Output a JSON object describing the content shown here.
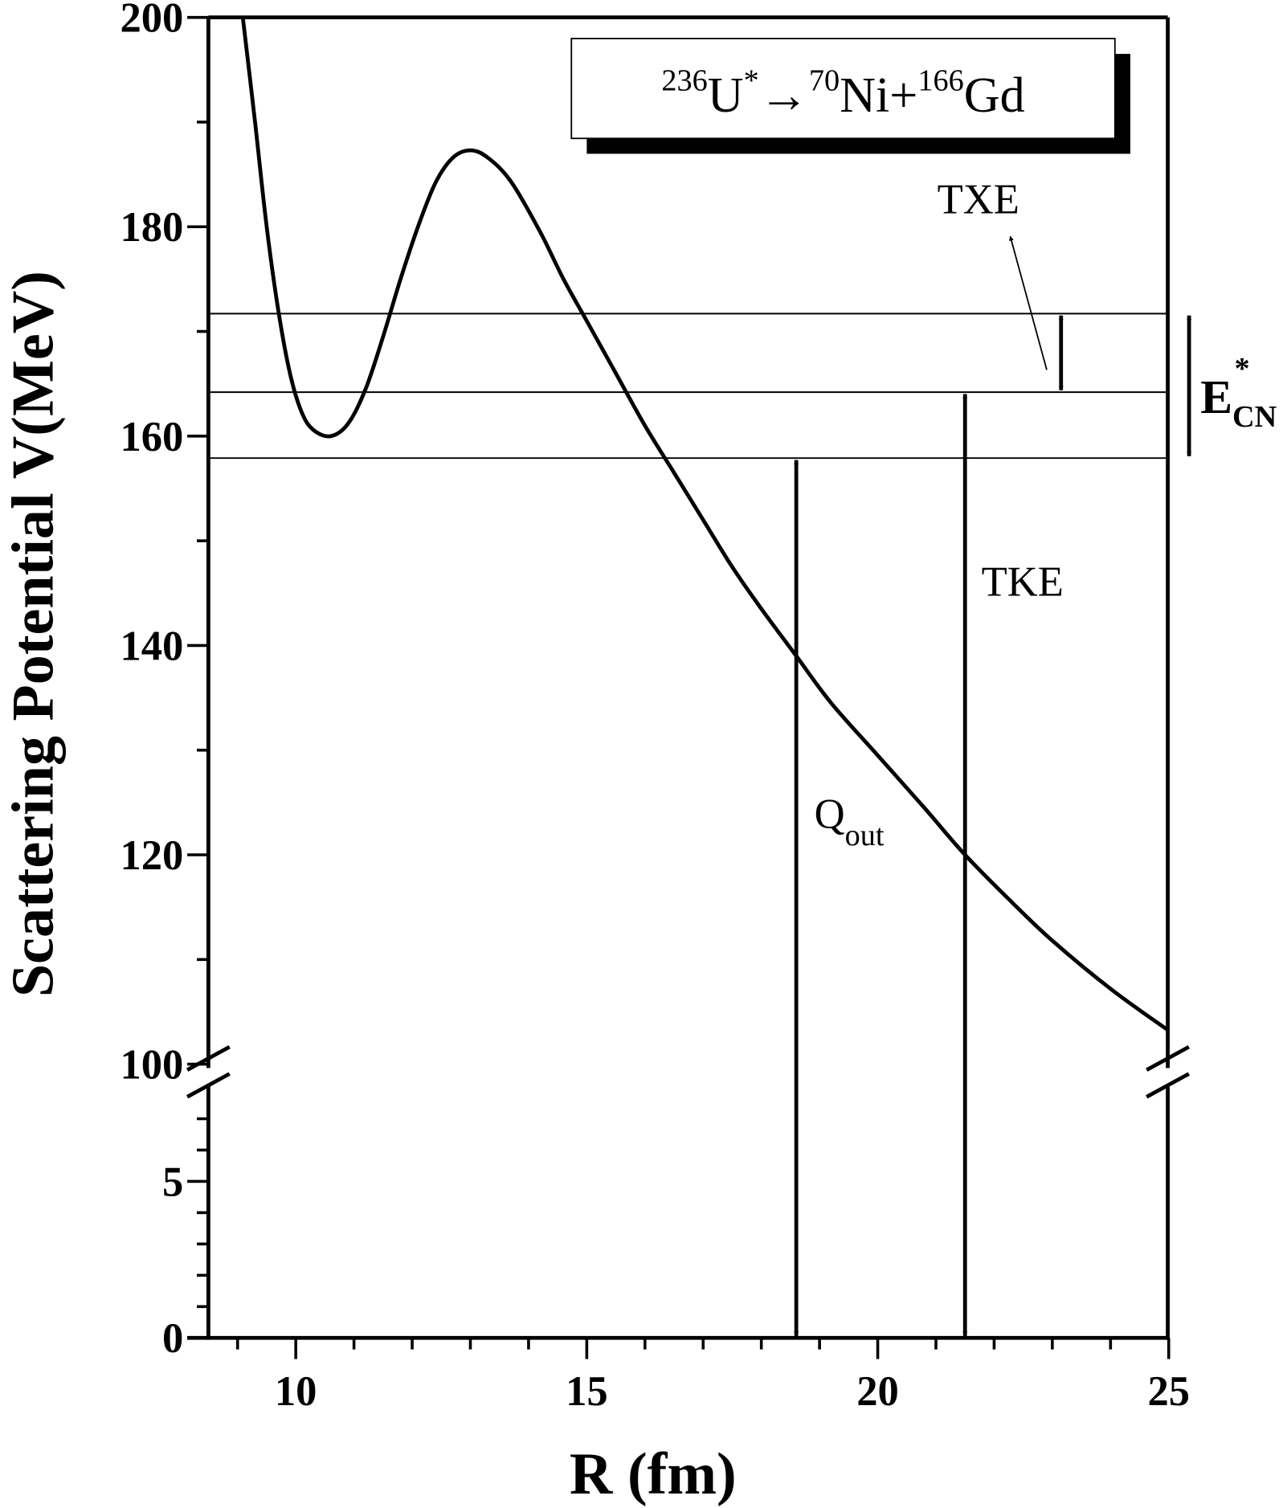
{
  "chart_data": {
    "type": "line",
    "xlabel": "R (fm)",
    "ylabel": "Scattering Potential V(MeV)",
    "xlim": [
      8.5,
      25
    ],
    "ylim_upper": [
      100,
      200
    ],
    "ylim_lower": [
      0,
      8
    ],
    "y_axis_break": true,
    "grid": false,
    "x_ticks": [
      "10",
      "15",
      "20",
      "25"
    ],
    "y_ticks_upper": [
      "100",
      "120",
      "140",
      "160",
      "180",
      "200"
    ],
    "y_ticks_lower": [
      "0",
      "5"
    ],
    "legend": {
      "placement": "top-right",
      "a1": "236",
      "s1": "U",
      "sup1": "*",
      "arrow": "→",
      "a2": "70",
      "s2": "Ni+",
      "a3": "166",
      "s3": "Gd"
    },
    "series": [
      {
        "x": [
          9.09,
          9.3,
          9.5,
          9.7,
          9.9,
          10.1,
          10.3,
          10.6,
          10.9,
          11.2,
          11.5,
          11.8,
          12.1,
          12.4,
          12.7,
          13.0,
          13.3,
          13.7,
          14.2,
          14.6,
          15.0,
          15.5,
          16.0,
          16.5,
          17.0,
          17.5,
          18.0,
          18.6,
          19.2,
          20.0,
          20.8,
          21.5,
          22.3,
          23.0,
          24.0,
          25.0
        ],
        "y": [
          200,
          190,
          180,
          172,
          166,
          162.3,
          160.6,
          160,
          161.2,
          164.5,
          169.5,
          175,
          180,
          184.2,
          186.6,
          187.3,
          186.6,
          184.3,
          179.5,
          175,
          171,
          166,
          161,
          156.5,
          152,
          147.5,
          143.5,
          139,
          134.5,
          129.5,
          124.5,
          120,
          115.5,
          111.8,
          107.2,
          103.2
        ]
      }
    ],
    "levels": [
      171.7,
      164.2,
      157.9
    ],
    "arrows": [
      {
        "label": "Qout",
        "x": 18.6,
        "from": 157.9,
        "to": 0
      },
      {
        "label": "TKE",
        "x": 21.5,
        "from": 164.2,
        "to": 0
      },
      {
        "label": "TXE",
        "x": 23.15,
        "from": 171.7,
        "to": 164.2
      },
      {
        "label": "E*CN",
        "x": 25.35,
        "from": 171.7,
        "to": 157.9
      }
    ],
    "annotations": {
      "txe": "TXE",
      "tke": "TKE",
      "q_main": "Q",
      "q_sub": "out",
      "e_main": "E",
      "e_sup": "*",
      "e_sub": "CN"
    },
    "colors": {
      "line": "#000000",
      "background": "#ffffff"
    }
  }
}
